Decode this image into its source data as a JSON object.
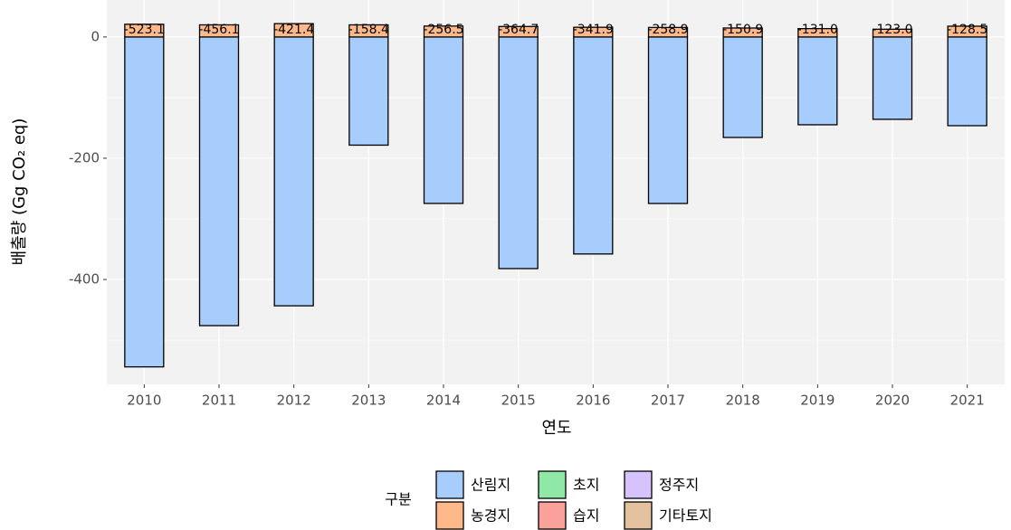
{
  "chart_data": {
    "type": "stacked_bar",
    "x_label": "연도",
    "y_label": "배출량 (Gg CO₂ eq)",
    "legend_title": "구분",
    "categories": [
      "2010",
      "2011",
      "2012",
      "2013",
      "2014",
      "2015",
      "2016",
      "2017",
      "2018",
      "2019",
      "2020",
      "2021"
    ],
    "series": [
      {
        "name": "산림지",
        "color": "#a6cdfb",
        "values": [
          -544.1,
          -476.1,
          -443.4,
          -178.4,
          -274.5,
          -382,
          -357.9,
          -274.6,
          -165.7,
          -144.8,
          -135.8,
          -146.3
        ]
      },
      {
        "name": "농경지",
        "color": "#fdb98a",
        "values": [
          21,
          20,
          22,
          20,
          18,
          17.3,
          16,
          15.7,
          14.8,
          13.8,
          12.8,
          17.8
        ]
      },
      {
        "name": "초지",
        "color": "#90e8a7",
        "values": [
          0,
          0,
          0,
          0,
          0,
          0,
          0,
          0,
          0,
          0,
          0,
          0
        ]
      },
      {
        "name": "습지",
        "color": "#f9a19a",
        "values": [
          0,
          0,
          0,
          0,
          0,
          0,
          0,
          0,
          0,
          0,
          0,
          0
        ]
      },
      {
        "name": "정주지",
        "color": "#d6c3fc",
        "values": [
          0,
          0,
          0,
          0,
          0,
          0,
          0,
          0,
          0,
          0,
          0,
          0
        ]
      },
      {
        "name": "기타토지",
        "color": "#e5c29f",
        "values": [
          0,
          0,
          0,
          0,
          0,
          0,
          0,
          0,
          0,
          0,
          0,
          0
        ]
      }
    ],
    "totals": [
      -523.1,
      -456.1,
      -421.4,
      -158.4,
      -256.5,
      -364.7,
      -341.9,
      -258.9,
      -150.9,
      -131.0,
      -123.0,
      -128.5
    ],
    "total_labels": [
      "-523.1",
      "-456.1",
      "-421.4",
      "-158.4",
      "-256.5",
      "-364.7",
      "-341.9",
      "-258.9",
      "-150.9",
      "-131.0",
      "-123.0",
      "-128.5"
    ],
    "ylim": [
      -573,
      61
    ],
    "yticks": [
      -400,
      -200,
      0
    ],
    "grid": true,
    "legend": "bottom"
  }
}
